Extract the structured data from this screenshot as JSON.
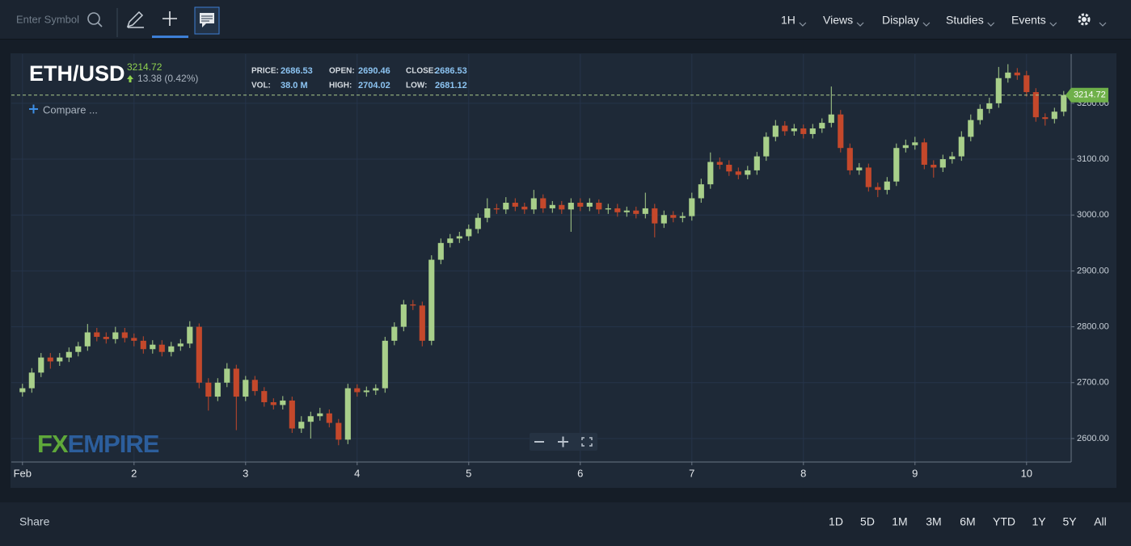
{
  "toolbar": {
    "search_placeholder": "Enter Symbol",
    "menus": [
      "1H",
      "Views",
      "Display",
      "Studies",
      "Events"
    ]
  },
  "chart_data": {
    "type": "candlestick",
    "symbol": "ETH/USD",
    "last_price": 3214.72,
    "change": "13.38 (0.42%)",
    "stats": [
      {
        "label": "PRICE:",
        "value": "2686.53"
      },
      {
        "label": "OPEN:",
        "value": "2690.46"
      },
      {
        "label": "CLOSE:",
        "value": "2686.53"
      },
      {
        "label": "VOL:",
        "value": "38.0 M"
      },
      {
        "label": "HIGH:",
        "value": "2704.02"
      },
      {
        "label": "LOW:",
        "value": "2681.12"
      }
    ],
    "compare": "Compare ...",
    "watermark": [
      "FX",
      "EMPIRE"
    ],
    "up_color": "#a8cf8a",
    "down_color": "#c4482b",
    "grid": true,
    "xlim": [
      -2.4,
      225.6
    ],
    "ylim": [
      2558,
      3288
    ],
    "yticks": [
      {
        "value": 2600,
        "label": "2600.00"
      },
      {
        "value": 2700,
        "label": "2700.00"
      },
      {
        "value": 2800,
        "label": "2800.00"
      },
      {
        "value": 2900,
        "label": "2900.00"
      },
      {
        "value": 3000,
        "label": "3000.00"
      },
      {
        "value": 3100,
        "label": "3100.00"
      },
      {
        "value": 3200,
        "label": "3200.00"
      }
    ],
    "xticks": [
      {
        "value": 0,
        "label": "Feb"
      },
      {
        "value": 24,
        "label": "2"
      },
      {
        "value": 48,
        "label": "3"
      },
      {
        "value": 72,
        "label": "4"
      },
      {
        "value": 96,
        "label": "5"
      },
      {
        "value": 120,
        "label": "6"
      },
      {
        "value": 144,
        "label": "7"
      },
      {
        "value": 168,
        "label": "8"
      },
      {
        "value": 192,
        "label": "9"
      },
      {
        "value": 216,
        "label": "10"
      }
    ],
    "x": [
      0,
      2,
      4,
      6,
      8,
      10,
      12,
      14,
      16,
      18,
      20,
      22,
      24,
      26,
      28,
      30,
      32,
      34,
      36,
      38,
      40,
      42,
      44,
      46,
      48,
      50,
      52,
      54,
      56,
      58,
      60,
      62,
      64,
      66,
      68,
      70,
      72,
      74,
      76,
      78,
      80,
      82,
      84,
      86,
      88,
      90,
      92,
      94,
      96,
      98,
      100,
      102,
      104,
      106,
      108,
      110,
      112,
      114,
      116,
      118,
      120,
      122,
      124,
      126,
      128,
      130,
      132,
      134,
      136,
      138,
      140,
      142,
      144,
      146,
      148,
      150,
      152,
      154,
      156,
      158,
      160,
      162,
      164,
      166,
      168,
      170,
      172,
      174,
      176,
      178,
      180,
      182,
      184,
      186,
      188,
      190,
      192,
      194,
      196,
      198,
      200,
      202,
      204,
      206,
      208,
      210,
      212,
      214,
      216,
      218,
      220,
      222,
      224
    ],
    "open": [
      2683,
      2690,
      2718,
      2745,
      2738,
      2745,
      2755,
      2765,
      2790,
      2782,
      2778,
      2790,
      2780,
      2775,
      2760,
      2768,
      2755,
      2765,
      2770,
      2800,
      2700,
      2675,
      2700,
      2725,
      2675,
      2705,
      2685,
      2665,
      2660,
      2668,
      2618,
      2630,
      2640,
      2645,
      2628,
      2598,
      2690,
      2683,
      2686,
      2690,
      2775,
      2800,
      2840,
      2838,
      2775,
      2920,
      2950,
      2958,
      2962,
      2975,
      2995,
      3012,
      3010,
      3022,
      3015,
      3010,
      3030,
      3012,
      3018,
      3010,
      3022,
      3015,
      3022,
      3010,
      3012,
      3005,
      3008,
      3002,
      3012,
      2985,
      3000,
      2995,
      2998,
      3030,
      3055,
      3095,
      3090,
      3078,
      3072,
      3080,
      3105,
      3140,
      3160,
      3150,
      3155,
      3145,
      3155,
      3165,
      3180,
      3120,
      3080,
      3085,
      3050,
      3045,
      3060,
      3120,
      3125,
      3130,
      3090,
      3085,
      3100,
      3105,
      3140,
      3170,
      3190,
      3200,
      3245,
      3255,
      3250,
      3220,
      3175,
      3172,
      3185
    ],
    "high": [
      2698,
      2726,
      2753,
      2753,
      2753,
      2763,
      2773,
      2805,
      2798,
      2790,
      2800,
      2798,
      2788,
      2783,
      2776,
      2776,
      2773,
      2778,
      2810,
      2806,
      2708,
      2708,
      2735,
      2732,
      2712,
      2712,
      2692,
      2672,
      2676,
      2675,
      2640,
      2648,
      2655,
      2652,
      2635,
      2698,
      2697,
      2693,
      2697,
      2782,
      2808,
      2848,
      2848,
      2845,
      2928,
      2958,
      2966,
      2970,
      2983,
      3003,
      3030,
      3020,
      3032,
      3030,
      3022,
      3045,
      3037,
      3025,
      3025,
      3030,
      3030,
      3030,
      3028,
      3020,
      3020,
      3015,
      3015,
      3040,
      3020,
      3008,
      3007,
      3005,
      3040,
      3065,
      3112,
      3103,
      3098,
      3085,
      3088,
      3113,
      3148,
      3170,
      3168,
      3163,
      3162,
      3163,
      3173,
      3230,
      3188,
      3128,
      3093,
      3092,
      3058,
      3068,
      3128,
      3135,
      3140,
      3137,
      3098,
      3108,
      3113,
      3150,
      3180,
      3198,
      3210,
      3265,
      3270,
      3263,
      3258,
      3227,
      3182,
      3192,
      3222
    ],
    "low": [
      2675,
      2682,
      2710,
      2725,
      2730,
      2737,
      2747,
      2757,
      2774,
      2770,
      2770,
      2772,
      2765,
      2752,
      2752,
      2747,
      2747,
      2757,
      2762,
      2690,
      2650,
      2667,
      2692,
      2615,
      2667,
      2677,
      2657,
      2652,
      2652,
      2610,
      2610,
      2600,
      2632,
      2620,
      2588,
      2590,
      2675,
      2675,
      2678,
      2682,
      2767,
      2792,
      2830,
      2765,
      2767,
      2912,
      2942,
      2950,
      2954,
      2967,
      2987,
      3002,
      3002,
      3007,
      3002,
      3002,
      3004,
      3004,
      3002,
      2970,
      3007,
      3007,
      3002,
      3002,
      2997,
      2997,
      2994,
      2994,
      2960,
      2977,
      2987,
      2987,
      2990,
      3022,
      3047,
      3082,
      3070,
      3064,
      3064,
      3072,
      3097,
      3132,
      3142,
      3142,
      3137,
      3137,
      3147,
      3157,
      3112,
      3072,
      3072,
      3042,
      3032,
      3037,
      3052,
      3112,
      3117,
      3082,
      3067,
      3077,
      3092,
      3097,
      3132,
      3162,
      3182,
      3192,
      3237,
      3242,
      3212,
      3167,
      3160,
      3164,
      3177
    ],
    "close": [
      2690,
      2718,
      2745,
      2738,
      2745,
      2755,
      2765,
      2790,
      2782,
      2778,
      2790,
      2780,
      2775,
      2760,
      2768,
      2755,
      2765,
      2770,
      2800,
      2700,
      2675,
      2700,
      2725,
      2675,
      2705,
      2685,
      2665,
      2660,
      2668,
      2618,
      2630,
      2640,
      2645,
      2628,
      2598,
      2690,
      2683,
      2686,
      2690,
      2775,
      2800,
      2840,
      2838,
      2775,
      2920,
      2950,
      2958,
      2962,
      2975,
      2995,
      3012,
      3010,
      3022,
      3015,
      3010,
      3030,
      3012,
      3018,
      3010,
      3022,
      3015,
      3022,
      3010,
      3012,
      3005,
      3008,
      3002,
      3012,
      2985,
      3000,
      2995,
      2998,
      3030,
      3055,
      3095,
      3090,
      3078,
      3072,
      3080,
      3105,
      3140,
      3160,
      3150,
      3155,
      3145,
      3155,
      3165,
      3180,
      3120,
      3080,
      3085,
      3050,
      3045,
      3060,
      3120,
      3125,
      3130,
      3090,
      3085,
      3100,
      3105,
      3140,
      3170,
      3190,
      3200,
      3245,
      3255,
      3250,
      3220,
      3175,
      3172,
      3185,
      3214.72
    ]
  },
  "footer": {
    "share": "Share",
    "ranges": [
      "1D",
      "5D",
      "1M",
      "3M",
      "6M",
      "YTD",
      "1Y",
      "5Y",
      "All"
    ]
  }
}
